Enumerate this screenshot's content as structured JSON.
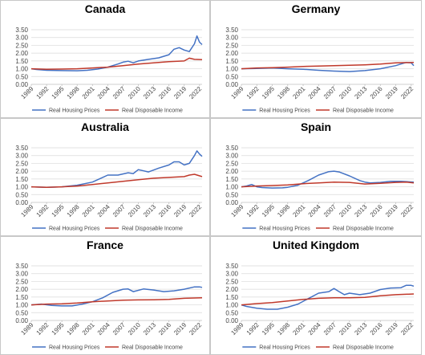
{
  "legend": {
    "housing": "Real Housing Prices",
    "income": "Real Disposable Income"
  },
  "colors": {
    "housing": "#4472C4",
    "income": "#C0392B"
  },
  "x_ticks": [
    "1989",
    "1992",
    "1995",
    "1998",
    "2001",
    "2004",
    "2007",
    "2010",
    "2013",
    "2016",
    "2019",
    "2022"
  ],
  "y_ticks": [
    "0.00",
    "0.50",
    "1.00",
    "1.50",
    "2.00",
    "2.50",
    "3.00",
    "3.50"
  ],
  "chart_data": [
    {
      "type": "line",
      "title": "Canada",
      "xlim": [
        1989,
        2022.5
      ],
      "ylim": [
        0,
        3.5
      ],
      "grid": true,
      "legend": "bottom",
      "series": [
        {
          "name": "Real Housing Prices",
          "x": [
            1989,
            1990,
            1992,
            1995,
            1998,
            2000,
            2002,
            2004,
            2006,
            2007,
            2008,
            2009,
            2010,
            2012,
            2014,
            2016,
            2017,
            2018,
            2019,
            2020,
            2021,
            2021.5,
            2022,
            2022.5
          ],
          "y": [
            1.0,
            0.95,
            0.9,
            0.88,
            0.87,
            0.9,
            0.98,
            1.1,
            1.3,
            1.42,
            1.48,
            1.38,
            1.5,
            1.6,
            1.7,
            1.9,
            2.25,
            2.35,
            2.2,
            2.1,
            2.6,
            3.1,
            2.7,
            2.55
          ]
        },
        {
          "name": "Real Disposable Income",
          "x": [
            1989,
            1992,
            1995,
            1998,
            2001,
            2004,
            2007,
            2010,
            2013,
            2016,
            2019,
            2020,
            2021,
            2022.5
          ],
          "y": [
            1.0,
            0.97,
            0.98,
            1.0,
            1.05,
            1.1,
            1.2,
            1.3,
            1.38,
            1.45,
            1.5,
            1.68,
            1.6,
            1.58
          ]
        }
      ]
    },
    {
      "type": "line",
      "title": "Germany",
      "xlim": [
        1989,
        2022.5
      ],
      "ylim": [
        0,
        3.5
      ],
      "grid": true,
      "legend": "bottom",
      "series": [
        {
          "name": "Real Housing Prices",
          "x": [
            1989,
            1992,
            1995,
            1998,
            2001,
            2004,
            2007,
            2010,
            2013,
            2016,
            2019,
            2020,
            2021,
            2022,
            2022.5
          ],
          "y": [
            1.0,
            1.02,
            1.05,
            1.0,
            0.97,
            0.9,
            0.85,
            0.82,
            0.88,
            1.0,
            1.2,
            1.3,
            1.4,
            1.38,
            1.2
          ]
        },
        {
          "name": "Real Disposable Income",
          "x": [
            1989,
            1992,
            1995,
            1998,
            2001,
            2004,
            2007,
            2010,
            2013,
            2016,
            2019,
            2022.5
          ],
          "y": [
            1.0,
            1.05,
            1.07,
            1.1,
            1.15,
            1.17,
            1.2,
            1.22,
            1.25,
            1.3,
            1.38,
            1.4
          ]
        }
      ]
    },
    {
      "type": "line",
      "title": "Australia",
      "xlim": [
        1989,
        2022.5
      ],
      "ylim": [
        0,
        3.5
      ],
      "grid": true,
      "legend": "bottom",
      "series": [
        {
          "name": "Real Housing Prices",
          "x": [
            1989,
            1992,
            1995,
            1998,
            2001,
            2003,
            2004,
            2006,
            2008,
            2009,
            2010,
            2012,
            2014,
            2016,
            2017,
            2018,
            2019,
            2020,
            2021,
            2021.5,
            2022,
            2022.5
          ],
          "y": [
            1.0,
            0.97,
            1.0,
            1.1,
            1.3,
            1.6,
            1.75,
            1.75,
            1.9,
            1.85,
            2.1,
            1.95,
            2.2,
            2.4,
            2.6,
            2.6,
            2.4,
            2.5,
            3.0,
            3.3,
            3.1,
            2.95
          ]
        },
        {
          "name": "Real Disposable Income",
          "x": [
            1989,
            1992,
            1995,
            1998,
            2001,
            2004,
            2007,
            2010,
            2013,
            2016,
            2019,
            2020,
            2021,
            2022.5
          ],
          "y": [
            1.0,
            0.97,
            1.0,
            1.05,
            1.15,
            1.25,
            1.35,
            1.45,
            1.55,
            1.6,
            1.65,
            1.75,
            1.8,
            1.65
          ]
        }
      ]
    },
    {
      "type": "line",
      "title": "Spain",
      "xlim": [
        1989,
        2022.5
      ],
      "ylim": [
        0,
        3.5
      ],
      "grid": true,
      "legend": "bottom",
      "series": [
        {
          "name": "Real Housing Prices",
          "x": [
            1989,
            1990,
            1991,
            1992,
            1993,
            1995,
            1997,
            1998,
            2000,
            2002,
            2004,
            2006,
            2007,
            2008,
            2010,
            2012,
            2013,
            2014,
            2016,
            2018,
            2020,
            2022.5
          ],
          "y": [
            1.0,
            1.05,
            1.15,
            1.0,
            0.95,
            0.92,
            0.93,
            0.97,
            1.1,
            1.4,
            1.75,
            1.97,
            2.0,
            1.95,
            1.7,
            1.4,
            1.3,
            1.25,
            1.28,
            1.35,
            1.35,
            1.3
          ]
        },
        {
          "name": "Real Disposable Income",
          "x": [
            1989,
            1992,
            1995,
            1998,
            2001,
            2004,
            2007,
            2010,
            2013,
            2016,
            2019,
            2021,
            2022.5
          ],
          "y": [
            1.0,
            1.05,
            1.08,
            1.12,
            1.2,
            1.25,
            1.3,
            1.28,
            1.18,
            1.22,
            1.28,
            1.3,
            1.25
          ]
        }
      ]
    },
    {
      "type": "line",
      "title": "France",
      "xlim": [
        1989,
        2022.5
      ],
      "ylim": [
        0,
        3.5
      ],
      "grid": true,
      "legend": "bottom",
      "series": [
        {
          "name": "Real Housing Prices",
          "x": [
            1989,
            1991,
            1993,
            1995,
            1997,
            1999,
            2001,
            2003,
            2005,
            2007,
            2008,
            2009,
            2011,
            2013,
            2015,
            2017,
            2019,
            2021,
            2022,
            2022.5
          ],
          "y": [
            1.0,
            1.05,
            0.97,
            0.93,
            0.93,
            1.05,
            1.2,
            1.45,
            1.8,
            2.0,
            2.02,
            1.85,
            2.02,
            1.95,
            1.85,
            1.9,
            2.0,
            2.15,
            2.15,
            2.12
          ]
        },
        {
          "name": "Real Disposable Income",
          "x": [
            1989,
            1992,
            1995,
            1998,
            2001,
            2004,
            2007,
            2010,
            2013,
            2016,
            2019,
            2022.5
          ],
          "y": [
            1.0,
            1.05,
            1.07,
            1.12,
            1.2,
            1.25,
            1.3,
            1.32,
            1.33,
            1.35,
            1.42,
            1.45
          ]
        }
      ]
    },
    {
      "type": "line",
      "title": "United Kingdom",
      "xlim": [
        1989,
        2022.5
      ],
      "ylim": [
        0,
        3.5
      ],
      "grid": true,
      "legend": "bottom",
      "series": [
        {
          "name": "Real Housing Prices",
          "x": [
            1989,
            1990,
            1992,
            1994,
            1996,
            1998,
            2000,
            2002,
            2004,
            2006,
            2007,
            2008,
            2009,
            2010,
            2012,
            2014,
            2016,
            2018,
            2020,
            2021,
            2022,
            2022.5
          ],
          "y": [
            1.0,
            0.9,
            0.78,
            0.72,
            0.72,
            0.85,
            1.05,
            1.4,
            1.75,
            1.85,
            2.05,
            1.85,
            1.65,
            1.75,
            1.65,
            1.75,
            1.98,
            2.08,
            2.1,
            2.25,
            2.25,
            2.2
          ]
        },
        {
          "name": "Real Disposable Income",
          "x": [
            1989,
            1992,
            1995,
            1998,
            2001,
            2004,
            2007,
            2010,
            2013,
            2016,
            2019,
            2022.5
          ],
          "y": [
            1.0,
            1.08,
            1.15,
            1.25,
            1.35,
            1.42,
            1.45,
            1.45,
            1.48,
            1.58,
            1.65,
            1.7
          ]
        }
      ]
    }
  ]
}
